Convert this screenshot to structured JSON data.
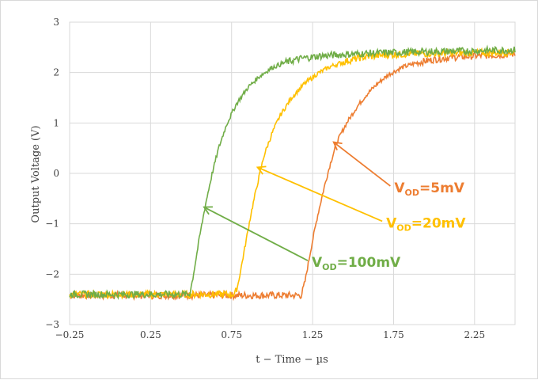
{
  "chart_data": {
    "type": "line",
    "title": "",
    "xlabel": "t − Time − µs",
    "ylabel": "Output Voltage (V)",
    "xlim": [
      -0.25,
      2.5
    ],
    "ylim": [
      -3,
      3
    ],
    "x_ticks": [
      -0.25,
      0.25,
      0.75,
      1.25,
      1.75,
      2.25
    ],
    "x_tick_labels": [
      "−0.25",
      "0.25",
      "0.75",
      "1.25",
      "1.75",
      "2.25"
    ],
    "y_ticks": [
      3,
      2,
      1,
      0,
      -1,
      -2,
      -3
    ],
    "y_tick_labels": [
      "3",
      "2",
      "1",
      "0",
      "−1",
      "−2",
      "−3"
    ],
    "grid": true,
    "series": [
      {
        "name": "VOD=5mV",
        "color": "#ED7D31",
        "x": [
          -0.25,
          1.18,
          1.2,
          1.24,
          1.28,
          1.32,
          1.36,
          1.4,
          1.46,
          1.52,
          1.58,
          1.65,
          1.72,
          1.8,
          1.9,
          2.0,
          2.1,
          2.25,
          2.4,
          2.5
        ],
        "y": [
          -2.42,
          -2.42,
          -2.2,
          -1.5,
          -0.85,
          -0.3,
          0.2,
          0.62,
          1.0,
          1.3,
          1.55,
          1.78,
          1.96,
          2.1,
          2.2,
          2.26,
          2.3,
          2.33,
          2.35,
          2.37
        ]
      },
      {
        "name": "VOD=20mV",
        "color": "#FFC000",
        "x": [
          -0.25,
          0.77,
          0.79,
          0.83,
          0.87,
          0.91,
          0.95,
          1.0,
          1.05,
          1.12,
          1.2,
          1.28,
          1.36,
          1.45,
          1.55,
          1.7,
          1.85,
          2.0,
          2.2,
          2.5
        ],
        "y": [
          -2.4,
          -2.4,
          -2.2,
          -1.5,
          -0.8,
          -0.2,
          0.35,
          0.8,
          1.15,
          1.5,
          1.78,
          1.98,
          2.12,
          2.22,
          2.3,
          2.35,
          2.37,
          2.38,
          2.39,
          2.4
        ]
      },
      {
        "name": "VOD=100mV",
        "color": "#70AD47",
        "x": [
          -0.25,
          0.49,
          0.51,
          0.55,
          0.59,
          0.63,
          0.67,
          0.72,
          0.78,
          0.85,
          0.92,
          1.0,
          1.08,
          1.18,
          1.3,
          1.45,
          1.65,
          1.9,
          2.2,
          2.5
        ],
        "y": [
          -2.4,
          -2.4,
          -2.1,
          -1.3,
          -0.6,
          0.0,
          0.5,
          0.98,
          1.38,
          1.7,
          1.92,
          2.1,
          2.2,
          2.28,
          2.33,
          2.36,
          2.39,
          2.41,
          2.43,
          2.45
        ]
      }
    ],
    "annotations": [
      {
        "label_main": "V",
        "label_sub": "OD",
        "label_rest": "=5mV",
        "color": "#ED7D31",
        "arrow_from": [
          1.73,
          -0.25
        ],
        "arrow_to": [
          1.38,
          0.62
        ]
      },
      {
        "label_main": "V",
        "label_sub": "OD",
        "label_rest": "=20mV",
        "color": "#FFC000",
        "arrow_from": [
          1.68,
          -0.95
        ],
        "arrow_to": [
          0.91,
          0.12
        ]
      },
      {
        "label_main": "V",
        "label_sub": "OD",
        "label_rest": "=100mV",
        "color": "#70AD47",
        "arrow_from": [
          1.22,
          -1.73
        ],
        "arrow_to": [
          0.58,
          -0.67
        ]
      }
    ]
  }
}
